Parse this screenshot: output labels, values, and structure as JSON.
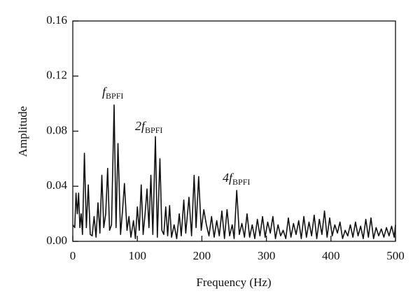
{
  "chart_data": {
    "type": "line",
    "xlabel": "Frequency (Hz)",
    "ylabel": "Amplitude",
    "x": [
      0,
      3,
      5,
      7,
      9,
      11,
      13,
      15,
      18,
      21,
      24,
      27,
      30,
      33,
      36,
      39,
      42,
      45,
      48,
      51,
      54,
      57,
      60,
      64,
      67,
      70,
      74,
      77,
      80,
      84,
      87,
      90,
      94,
      97,
      100,
      103,
      106,
      109,
      112,
      115,
      118,
      121,
      124,
      128,
      131,
      135,
      138,
      141,
      144,
      147,
      150,
      153,
      157,
      161,
      165,
      168,
      172,
      175,
      180,
      184,
      188,
      191,
      195,
      199,
      203,
      207,
      211,
      215,
      219,
      223,
      227,
      231,
      235,
      239,
      243,
      247,
      250,
      254,
      258,
      262,
      266,
      270,
      274,
      278,
      282,
      286,
      290,
      294,
      298,
      302,
      306,
      310,
      314,
      318,
      322,
      326,
      330,
      334,
      338,
      342,
      346,
      350,
      354,
      358,
      362,
      366,
      370,
      374,
      378,
      382,
      386,
      390,
      394,
      398,
      402,
      406,
      410,
      414,
      418,
      422,
      426,
      430,
      434,
      438,
      442,
      446,
      450,
      454,
      458,
      462,
      466,
      470,
      474,
      478,
      482,
      486,
      490,
      494,
      498,
      500
    ],
    "values": [
      0.012,
      0.01,
      0.035,
      0.02,
      0.035,
      0.01,
      0.02,
      0.005,
      0.064,
      0.01,
      0.041,
      0.005,
      0.004,
      0.018,
      0.003,
      0.028,
      0.006,
      0.048,
      0.01,
      0.02,
      0.053,
      0.008,
      0.012,
      0.099,
      0.01,
      0.071,
      0.005,
      0.022,
      0.042,
      0.008,
      0.018,
      0.003,
      0.015,
      0.002,
      0.025,
      0.008,
      0.041,
      0.005,
      0.02,
      0.038,
      0.01,
      0.048,
      0.005,
      0.076,
      0.003,
      0.06,
      0.008,
      0.005,
      0.025,
      0.004,
      0.026,
      0.003,
      0.012,
      0.002,
      0.02,
      0.004,
      0.03,
      0.006,
      0.032,
      0.004,
      0.048,
      0.01,
      0.047,
      0.008,
      0.023,
      0.012,
      0.004,
      0.018,
      0.003,
      0.015,
      0.004,
      0.022,
      0.002,
      0.023,
      0.004,
      0.012,
      0.002,
      0.037,
      0.005,
      0.013,
      0.003,
      0.02,
      0.003,
      0.012,
      0.002,
      0.016,
      0.004,
      0.018,
      0.003,
      0.014,
      0.006,
      0.018,
      0.002,
      0.012,
      0.004,
      0.008,
      0.002,
      0.017,
      0.003,
      0.013,
      0.005,
      0.015,
      0.002,
      0.018,
      0.003,
      0.014,
      0.004,
      0.019,
      0.002,
      0.016,
      0.005,
      0.022,
      0.003,
      0.017,
      0.004,
      0.012,
      0.006,
      0.014,
      0.002,
      0.008,
      0.004,
      0.012,
      0.003,
      0.014,
      0.004,
      0.011,
      0.002,
      0.016,
      0.003,
      0.017,
      0.002,
      0.01,
      0.004,
      0.009,
      0.003,
      0.01,
      0.004,
      0.011,
      0.003,
      0.012
    ],
    "color": "#111111",
    "xlim": [
      0,
      500
    ],
    "xticks": [
      0,
      100,
      200,
      300,
      400,
      500
    ],
    "ylim": [
      0,
      0.16
    ],
    "yticks": [
      {
        "value": 0,
        "label": "0.00"
      },
      0.04,
      0.08,
      0.12,
      0.16
    ],
    "annotations": [
      {
        "text": "f",
        "sub": "BPFI"
      },
      {
        "text": "2f",
        "sub": "BPFI"
      },
      {
        "text": "4f",
        "sub": "BPFI"
      }
    ]
  }
}
